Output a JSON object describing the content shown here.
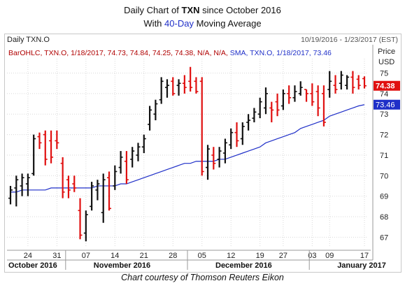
{
  "header": {
    "title_prefix": "Daily Chart of",
    "title_ticker": "TXN",
    "title_suffix": "since October 2016",
    "subtitle_prefix": "With",
    "subtitle_ma": "40-Day",
    "subtitle_suffix": "Moving Average",
    "symbol": "Daily TXN.O",
    "date_range": "10/19/2016 - 1/23/2017 (EST)"
  },
  "legend": {
    "bar_text": "BarOHLC, TXN.O, 1/18/2017, 74.73, 74.84, 74.25, 74.38, N/A, N/A,",
    "sma_text": "SMA, TXN.O, 1/18/2017, 73.46"
  },
  "price_axis_label": "Price",
  "price_axis_unit": "USD",
  "caption": "Chart courtesy of Thomson Reuters Eikon",
  "colors": {
    "up": "#111111",
    "down": "#e01010",
    "sma": "#1f2fc8",
    "last_price_bg": "#e01010",
    "sma_bg": "#1f2fc8",
    "grid": "#d9d9d9"
  },
  "chart_data": {
    "type": "ohlc",
    "y_ticks": [
      67,
      68,
      69,
      70,
      71,
      72,
      73,
      74,
      75
    ],
    "ylim": [
      66.5,
      75.7
    ],
    "last_price_badge": "74.38",
    "sma_badge": "73.46",
    "x_day_ticks": [
      {
        "label": "24",
        "index": 3
      },
      {
        "label": "31",
        "index": 8
      },
      {
        "label": "07",
        "index": 13
      },
      {
        "label": "14",
        "index": 18
      },
      {
        "label": "21",
        "index": 23
      },
      {
        "label": "28",
        "index": 28
      },
      {
        "label": "05",
        "index": 33
      },
      {
        "label": "12",
        "index": 38
      },
      {
        "label": "19",
        "index": 43
      },
      {
        "label": "27",
        "index": 47
      },
      {
        "label": "03",
        "index": 52
      },
      {
        "label": "09",
        "index": 55
      },
      {
        "label": "17",
        "index": 61
      }
    ],
    "months": [
      {
        "label": "October 2016",
        "start": 0
      },
      {
        "label": "November 2016",
        "start": 10
      },
      {
        "label": "December 2016",
        "start": 31
      },
      {
        "label": "January 2017",
        "start": 52
      }
    ],
    "bars": [
      {
        "o": 68.9,
        "h": 69.5,
        "l": 68.6,
        "c": 69.3
      },
      {
        "o": 69.4,
        "h": 70.0,
        "l": 68.5,
        "c": 69.8
      },
      {
        "o": 69.5,
        "h": 70.1,
        "l": 69.0,
        "c": 69.9
      },
      {
        "o": 69.6,
        "h": 70.1,
        "l": 69.0,
        "c": 69.9
      },
      {
        "o": 70.1,
        "h": 72.0,
        "l": 70.0,
        "c": 71.8
      },
      {
        "o": 71.9,
        "h": 72.1,
        "l": 71.3,
        "c": 71.6
      },
      {
        "o": 72.0,
        "h": 72.2,
        "l": 70.5,
        "c": 70.8
      },
      {
        "o": 71.7,
        "h": 72.2,
        "l": 70.6,
        "c": 70.9
      },
      {
        "o": 71.7,
        "h": 72.2,
        "l": 71.3,
        "c": 71.6
      },
      {
        "o": 70.6,
        "h": 70.9,
        "l": 68.9,
        "c": 69.2
      },
      {
        "o": 69.8,
        "h": 70.0,
        "l": 68.9,
        "c": 69.3
      },
      {
        "o": 69.6,
        "h": 70.0,
        "l": 69.2,
        "c": 69.4
      },
      {
        "o": 68.3,
        "h": 68.9,
        "l": 66.9,
        "c": 67.1
      },
      {
        "o": 67.2,
        "h": 68.3,
        "l": 66.8,
        "c": 68.1
      },
      {
        "o": 68.5,
        "h": 69.7,
        "l": 68.3,
        "c": 69.5
      },
      {
        "o": 69.3,
        "h": 69.8,
        "l": 68.8,
        "c": 69.6
      },
      {
        "o": 68.2,
        "h": 70.1,
        "l": 67.7,
        "c": 69.8
      },
      {
        "o": 69.9,
        "h": 70.2,
        "l": 68.3,
        "c": 68.4
      },
      {
        "o": 69.5,
        "h": 70.5,
        "l": 69.3,
        "c": 70.2
      },
      {
        "o": 70.4,
        "h": 71.2,
        "l": 70.1,
        "c": 70.9
      },
      {
        "o": 70.7,
        "h": 71.2,
        "l": 69.6,
        "c": 69.8
      },
      {
        "o": 70.8,
        "h": 71.4,
        "l": 70.4,
        "c": 71.2
      },
      {
        "o": 71.0,
        "h": 71.6,
        "l": 70.7,
        "c": 71.4
      },
      {
        "o": 71.4,
        "h": 72.0,
        "l": 71.1,
        "c": 71.8
      },
      {
        "o": 72.5,
        "h": 73.4,
        "l": 72.2,
        "c": 73.2
      },
      {
        "o": 73.0,
        "h": 73.7,
        "l": 72.7,
        "c": 73.5
      },
      {
        "o": 73.7,
        "h": 74.8,
        "l": 73.5,
        "c": 74.6
      },
      {
        "o": 74.3,
        "h": 74.7,
        "l": 73.8,
        "c": 74.4
      },
      {
        "o": 74.6,
        "h": 74.8,
        "l": 73.9,
        "c": 74.0
      },
      {
        "o": 74.4,
        "h": 74.7,
        "l": 73.9,
        "c": 74.5
      },
      {
        "o": 74.5,
        "h": 74.9,
        "l": 74.0,
        "c": 74.3
      },
      {
        "o": 74.6,
        "h": 75.3,
        "l": 74.1,
        "c": 74.3
      },
      {
        "o": 74.6,
        "h": 74.8,
        "l": 74.0,
        "c": 74.1
      },
      {
        "o": 74.6,
        "h": 74.8,
        "l": 70.0,
        "c": 70.2
      },
      {
        "o": 70.4,
        "h": 71.5,
        "l": 69.8,
        "c": 71.3
      },
      {
        "o": 71.0,
        "h": 71.4,
        "l": 70.3,
        "c": 70.6
      },
      {
        "o": 70.8,
        "h": 71.4,
        "l": 70.4,
        "c": 71.2
      },
      {
        "o": 71.1,
        "h": 71.8,
        "l": 70.6,
        "c": 71.6
      },
      {
        "o": 71.5,
        "h": 72.3,
        "l": 71.3,
        "c": 72.1
      },
      {
        "o": 72.1,
        "h": 72.6,
        "l": 71.4,
        "c": 71.7
      },
      {
        "o": 71.8,
        "h": 72.6,
        "l": 71.5,
        "c": 72.4
      },
      {
        "o": 72.6,
        "h": 73.0,
        "l": 72.2,
        "c": 72.7
      },
      {
        "o": 72.8,
        "h": 73.3,
        "l": 72.6,
        "c": 73.1
      },
      {
        "o": 73.0,
        "h": 73.8,
        "l": 72.8,
        "c": 73.6
      },
      {
        "o": 73.3,
        "h": 74.3,
        "l": 73.0,
        "c": 74.0
      },
      {
        "o": 73.3,
        "h": 73.6,
        "l": 72.6,
        "c": 73.2
      },
      {
        "o": 73.6,
        "h": 74.0,
        "l": 72.9,
        "c": 73.2
      },
      {
        "o": 73.4,
        "h": 74.2,
        "l": 73.2,
        "c": 74.0
      },
      {
        "o": 74.0,
        "h": 74.4,
        "l": 73.5,
        "c": 73.8
      },
      {
        "o": 73.8,
        "h": 74.4,
        "l": 73.6,
        "c": 74.1
      },
      {
        "o": 74.0,
        "h": 74.6,
        "l": 73.9,
        "c": 74.3
      },
      {
        "o": 74.2,
        "h": 74.2,
        "l": 73.6,
        "c": 74.0
      },
      {
        "o": 74.0,
        "h": 74.5,
        "l": 73.4,
        "c": 73.6
      },
      {
        "o": 74.1,
        "h": 74.4,
        "l": 72.9,
        "c": 73.3
      },
      {
        "o": 74.0,
        "h": 74.4,
        "l": 72.4,
        "c": 72.6
      },
      {
        "o": 74.2,
        "h": 75.1,
        "l": 73.8,
        "c": 74.6
      },
      {
        "o": 74.4,
        "h": 74.9,
        "l": 74.0,
        "c": 74.2
      },
      {
        "o": 74.5,
        "h": 75.1,
        "l": 74.2,
        "c": 74.9
      },
      {
        "o": 74.4,
        "h": 74.9,
        "l": 74.2,
        "c": 74.8
      },
      {
        "o": 74.8,
        "h": 75.1,
        "l": 74.0,
        "c": 74.3
      },
      {
        "o": 74.7,
        "h": 74.9,
        "l": 74.2,
        "c": 74.4
      },
      {
        "o": 74.73,
        "h": 74.84,
        "l": 74.25,
        "c": 74.38
      }
    ],
    "sma": [
      69.2,
      69.2,
      69.3,
      69.3,
      69.3,
      69.3,
      69.3,
      69.4,
      69.4,
      69.4,
      69.4,
      69.4,
      69.4,
      69.4,
      69.4,
      69.5,
      69.5,
      69.5,
      69.5,
      69.6,
      69.6,
      69.7,
      69.8,
      69.9,
      70.0,
      70.1,
      70.2,
      70.3,
      70.4,
      70.5,
      70.6,
      70.6,
      70.7,
      70.7,
      70.7,
      70.7,
      70.8,
      70.8,
      70.9,
      71.0,
      71.1,
      71.2,
      71.3,
      71.4,
      71.6,
      71.7,
      71.8,
      71.9,
      72.0,
      72.1,
      72.3,
      72.4,
      72.5,
      72.6,
      72.7,
      72.9,
      73.0,
      73.1,
      73.2,
      73.3,
      73.4,
      73.46
    ]
  }
}
